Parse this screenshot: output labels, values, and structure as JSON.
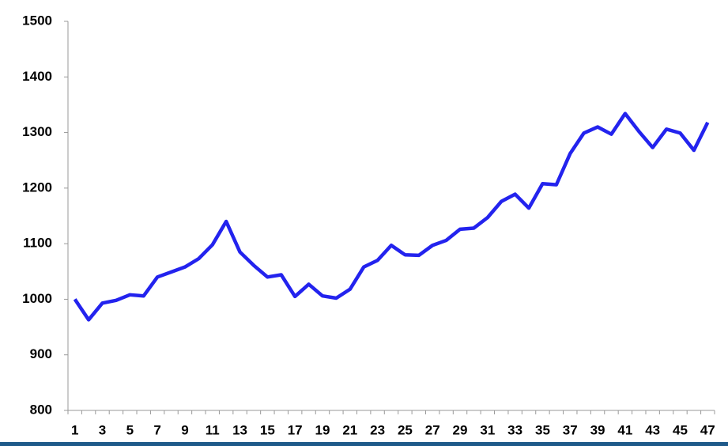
{
  "chart_data": {
    "type": "line",
    "categories": [
      "1",
      null,
      "3",
      null,
      "5",
      null,
      "7",
      null,
      "9",
      null,
      "11",
      null,
      "13",
      null,
      "15",
      null,
      "17",
      null,
      "19",
      null,
      "21",
      null,
      "23",
      null,
      "25",
      null,
      "27",
      null,
      "29",
      null,
      "31",
      null,
      "33",
      null,
      "35",
      null,
      "37",
      null,
      "39",
      null,
      "41",
      null,
      "43",
      null,
      "45",
      null,
      "47"
    ],
    "values": [
      1000,
      963,
      993,
      998,
      1008,
      1006,
      1040,
      1049,
      1058,
      1073,
      1098,
      1140,
      1085,
      1061,
      1040,
      1044,
      1005,
      1027,
      1006,
      1002,
      1018,
      1058,
      1070,
      1097,
      1080,
      1079,
      1097,
      1106,
      1126,
      1128,
      1147,
      1176,
      1189,
      1164,
      1208,
      1206,
      1262,
      1299,
      1310,
      1297,
      1334,
      1302,
      1273,
      1306,
      1299,
      1268,
      1318
    ],
    "color": "#2323ee",
    "ylim": [
      800,
      1500
    ],
    "yticks": [
      800,
      900,
      1000,
      1100,
      1200,
      1300,
      1400,
      1500
    ],
    "grid": false
  }
}
